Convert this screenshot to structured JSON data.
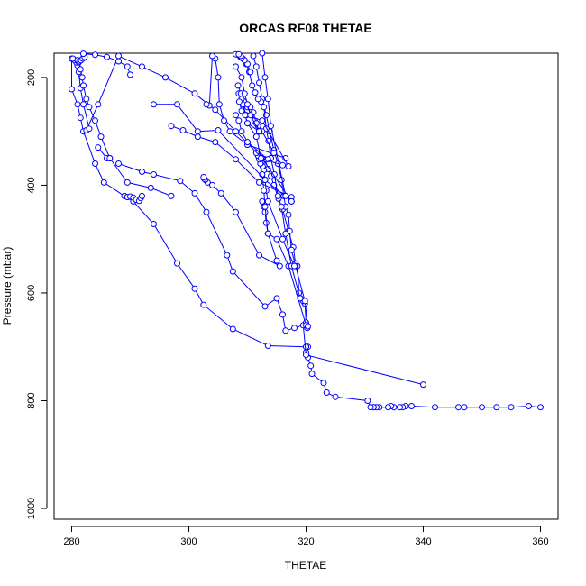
{
  "chart_data": {
    "type": "scatter",
    "title": "ORCAS RF08 THETAE",
    "xlabel": "THETAE",
    "ylabel": "Pressure (mbar)",
    "xlim": [
      277,
      363
    ],
    "ylim": [
      1020,
      155
    ],
    "y_axis_reversed": true,
    "grid": false,
    "legend": "none",
    "x_ticks": [
      280,
      300,
      320,
      340,
      360
    ],
    "y_ticks": [
      200,
      400,
      600,
      800,
      1000
    ],
    "marker": "open-circle",
    "connected": true,
    "color": "#0000ff",
    "series": [
      {
        "x": [
          360,
          358,
          355,
          352.5,
          350,
          347,
          346,
          342,
          338,
          337,
          336.5,
          336,
          335,
          334.5,
          334,
          332.5,
          332,
          331.5,
          331.5,
          331,
          330.5,
          325,
          323.5,
          323,
          321,
          320.8,
          320.3,
          320,
          320.3,
          320
        ],
        "y": [
          812,
          810,
          812,
          812,
          812,
          812,
          812,
          812,
          810,
          810,
          812,
          812,
          812,
          810,
          812,
          812,
          812,
          812,
          812,
          812,
          800,
          793,
          785,
          767,
          750,
          735,
          720,
          710,
          700,
          700
        ]
      },
      {
        "x": [
          320,
          313.5,
          307.5,
          302.5,
          301,
          298,
          294,
          290.5,
          289,
          285.5,
          284,
          282,
          281.5,
          281,
          280,
          280
        ],
        "y": [
          700,
          698,
          667,
          622,
          592,
          545,
          472,
          430,
          420,
          395,
          360,
          300,
          275,
          250,
          222,
          165
        ]
      },
      {
        "x": [
          340,
          320,
          319.5,
          318,
          316.5,
          316,
          315,
          313,
          307.5,
          306.5,
          303,
          301,
          298.5,
          294,
          292,
          288
        ],
        "y": [
          770,
          715,
          660,
          665,
          670,
          640,
          610,
          625,
          560,
          530,
          450,
          415,
          392,
          380,
          375,
          360
        ]
      },
      {
        "x": [
          320.2,
          320,
          319.8,
          319.5,
          319,
          318.8,
          318.5,
          318.2,
          317.8,
          317,
          316,
          315.3,
          314.5,
          314,
          313.5,
          313
        ],
        "y": [
          665,
          655,
          620,
          615,
          610,
          600,
          550,
          545,
          515,
          485,
          445,
          425,
          400,
          383,
          370,
          352
        ]
      },
      {
        "x": [
          320,
          317,
          315,
          313.5,
          313.2,
          313,
          312.8,
          312.5
        ],
        "y": [
          660,
          550,
          500,
          490,
          470,
          450,
          440,
          430
        ]
      },
      {
        "x": [
          320.3,
          319.8,
          318.2,
          317.5,
          317.2,
          317,
          316.5,
          316.2,
          315.8,
          315.2,
          314.5,
          313.8,
          313.2,
          312.5,
          312,
          311.5,
          311
        ],
        "y": [
          662,
          615,
          550,
          520,
          485,
          455,
          440,
          420,
          390,
          360,
          335,
          300,
          270,
          240,
          210,
          180,
          160
        ]
      },
      {
        "x": [
          319,
          317.5,
          316.5,
          315.8,
          315.2,
          314.6,
          314,
          313.6,
          313.2,
          312.8,
          312.3,
          311.8,
          311.3,
          310.8,
          310.3,
          309.8,
          309.2,
          308.8,
          308.4,
          308
        ],
        "y": [
          610,
          550,
          490,
          440,
          420,
          380,
          350,
          318,
          295,
          255,
          245,
          240,
          228,
          215,
          190,
          175,
          165,
          162,
          158,
          157
        ]
      },
      {
        "x": [
          318,
          316,
          313.5,
          313.2,
          313,
          312.8,
          312.6,
          312.4,
          312.2,
          312
        ],
        "y": [
          550,
          500,
          430,
          410,
          390,
          372,
          365,
          358,
          352,
          350
        ]
      },
      {
        "x": [
          315,
          313.5,
          313,
          312.8,
          312.5,
          312.2,
          312,
          311.8,
          311.5
        ],
        "y": [
          540,
          490,
          440,
          410,
          380,
          360,
          352,
          345,
          340
        ]
      },
      {
        "x": [
          315.5,
          312,
          308,
          305.5,
          304,
          303.2,
          302.8,
          302.6,
          302.5
        ],
        "y": [
          550,
          530,
          450,
          415,
          400,
          395,
          390,
          388,
          385
        ]
      },
      {
        "x": [
          317.5,
          312,
          308,
          304.5,
          301.5,
          299,
          297
        ],
        "y": [
          422,
          395,
          352,
          320,
          310,
          298,
          290
        ]
      },
      {
        "x": [
          317.5,
          313,
          305,
          301.5,
          298,
          294
        ],
        "y": [
          430,
          390,
          298,
          300,
          250,
          250
        ]
      },
      {
        "x": [
          317.5,
          312.5,
          308,
          304.5,
          301,
          296,
          292,
          288,
          284.5,
          282.5
        ],
        "y": [
          430,
          350,
          300,
          260,
          230,
          200,
          180,
          160,
          250,
          298
        ]
      },
      {
        "x": [
          316.5,
          310,
          307,
          306,
          305.2,
          305,
          304.5,
          304,
          303.5,
          303
        ],
        "y": [
          350,
          325,
          300,
          280,
          250,
          200,
          165,
          160,
          252,
          250
        ]
      },
      {
        "x": [
          316.5,
          314,
          313.5,
          313,
          312.5
        ],
        "y": [
          420,
          290,
          240,
          200,
          155
        ]
      },
      {
        "x": [
          312,
          310,
          309,
          308.5
        ],
        "y": [
          300,
          285,
          245,
          230
        ]
      },
      {
        "x": [
          314.5,
          312.5,
          311.8,
          311.2,
          310.6,
          310,
          309.4,
          308.9,
          308.4
        ],
        "y": [
          340,
          300,
          290,
          280,
          270,
          255,
          245,
          230,
          215
        ]
      },
      {
        "x": [
          313.5,
          310,
          309,
          308.5,
          308
        ],
        "y": [
          352,
          320,
          300,
          280,
          270
        ]
      },
      {
        "x": [
          317,
          312.5,
          309.8,
          309.2,
          309
        ],
        "y": [
          365,
          280,
          270,
          250,
          240
        ]
      },
      {
        "x": [
          316,
          312.3,
          311.5,
          310,
          309.6,
          309,
          308.6
        ],
        "y": [
          363,
          350,
          310,
          285,
          270,
          262,
          245
        ]
      },
      {
        "x": [
          310.5,
          311,
          311.5,
          312
        ],
        "y": [
          255,
          265,
          285,
          300
        ]
      },
      {
        "x": [
          297,
          293.5,
          289.5,
          286.5,
          286,
          284.5
        ],
        "y": [
          420,
          405,
          395,
          350,
          350,
          330
        ]
      },
      {
        "x": [
          289.5,
          290,
          290.5,
          291,
          291.5,
          291.8,
          292
        ],
        "y": [
          422,
          421,
          423,
          427,
          429,
          424,
          420
        ]
      },
      {
        "x": [
          283,
          282,
          281.5,
          281.2,
          281,
          280.8,
          280.5,
          280.2
        ],
        "y": [
          295,
          250,
          220,
          190,
          178,
          172,
          168,
          165
        ]
      },
      {
        "x": [
          286.5,
          285,
          284,
          283,
          282.5,
          282,
          281.8,
          281.5,
          281.2,
          281
        ],
        "y": [
          350,
          310,
          280,
          255,
          240,
          215,
          200,
          185,
          172,
          168
        ]
      },
      {
        "x": [
          281,
          281.3,
          281.6,
          281.9,
          282.2
        ],
        "y": [
          168,
          170,
          168,
          165,
          162
        ]
      },
      {
        "x": [
          290,
          289.5,
          288,
          286,
          284,
          282
        ],
        "y": [
          195,
          180,
          170,
          162,
          158,
          156
        ]
      },
      {
        "x": [
          308,
          309,
          309.5,
          310,
          310.5,
          312
        ],
        "y": [
          180,
          200,
          230,
          250,
          270,
          300
        ]
      },
      {
        "x": [
          310.5,
          310,
          309.5,
          309,
          308.8,
          308.5
        ],
        "y": [
          190,
          175,
          168,
          163,
          160,
          157
        ]
      }
    ]
  }
}
